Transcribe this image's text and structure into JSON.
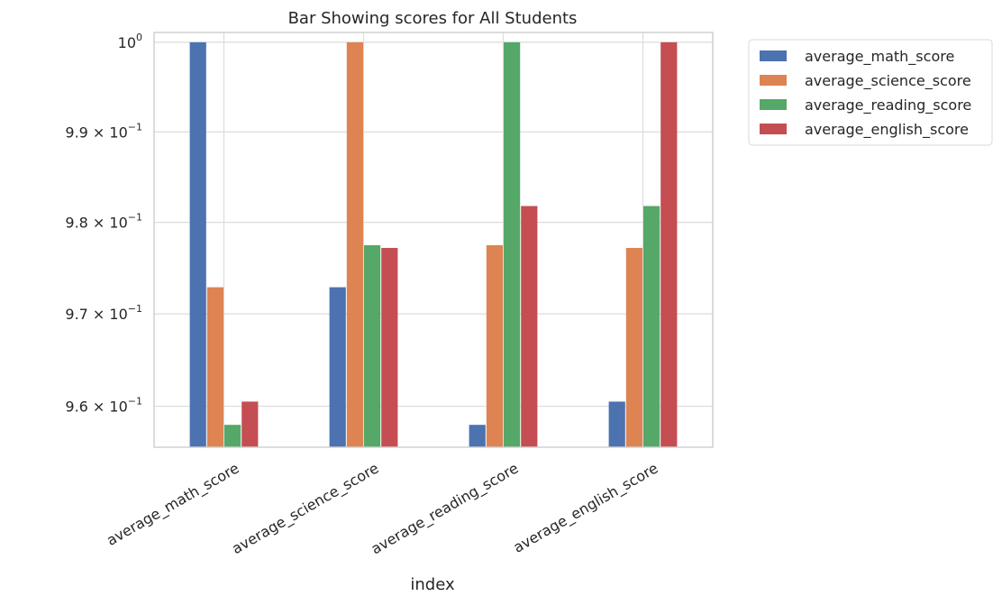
{
  "chart_data": {
    "type": "bar",
    "title": "Bar Showing scores for All Students",
    "xlabel": "index",
    "ylabel": "",
    "yscale": "log",
    "ylim": [
      0.9556,
      1.0011
    ],
    "grid": true,
    "legend_position": "outside-top-right",
    "categories": [
      "average_math_score",
      "average_science_score",
      "average_reading_score",
      "average_english_score"
    ],
    "series": [
      {
        "name": "average_math_score",
        "color": "#4c72b0",
        "values": [
          1.0,
          0.9729,
          0.958,
          0.9605
        ]
      },
      {
        "name": "average_science_score",
        "color": "#dd8452",
        "values": [
          0.9729,
          1.0,
          0.9775,
          0.9772
        ]
      },
      {
        "name": "average_reading_score",
        "color": "#55a868",
        "values": [
          0.958,
          0.9775,
          1.0,
          0.9818
        ]
      },
      {
        "name": "average_english_score",
        "color": "#c44e52",
        "values": [
          0.9605,
          0.9772,
          0.9818,
          1.0
        ]
      }
    ],
    "yticks": [
      {
        "value": 0.96,
        "mant": "9.6",
        "base": "× 10",
        "exp": "−1"
      },
      {
        "value": 0.97,
        "mant": "9.7",
        "base": "× 10",
        "exp": "−1"
      },
      {
        "value": 0.98,
        "mant": "9.8",
        "base": "× 10",
        "exp": "−1"
      },
      {
        "value": 0.99,
        "mant": "9.9",
        "base": "× 10",
        "exp": "−1"
      },
      {
        "value": 1.0,
        "mant": "",
        "base": "10",
        "exp": "0"
      }
    ]
  }
}
